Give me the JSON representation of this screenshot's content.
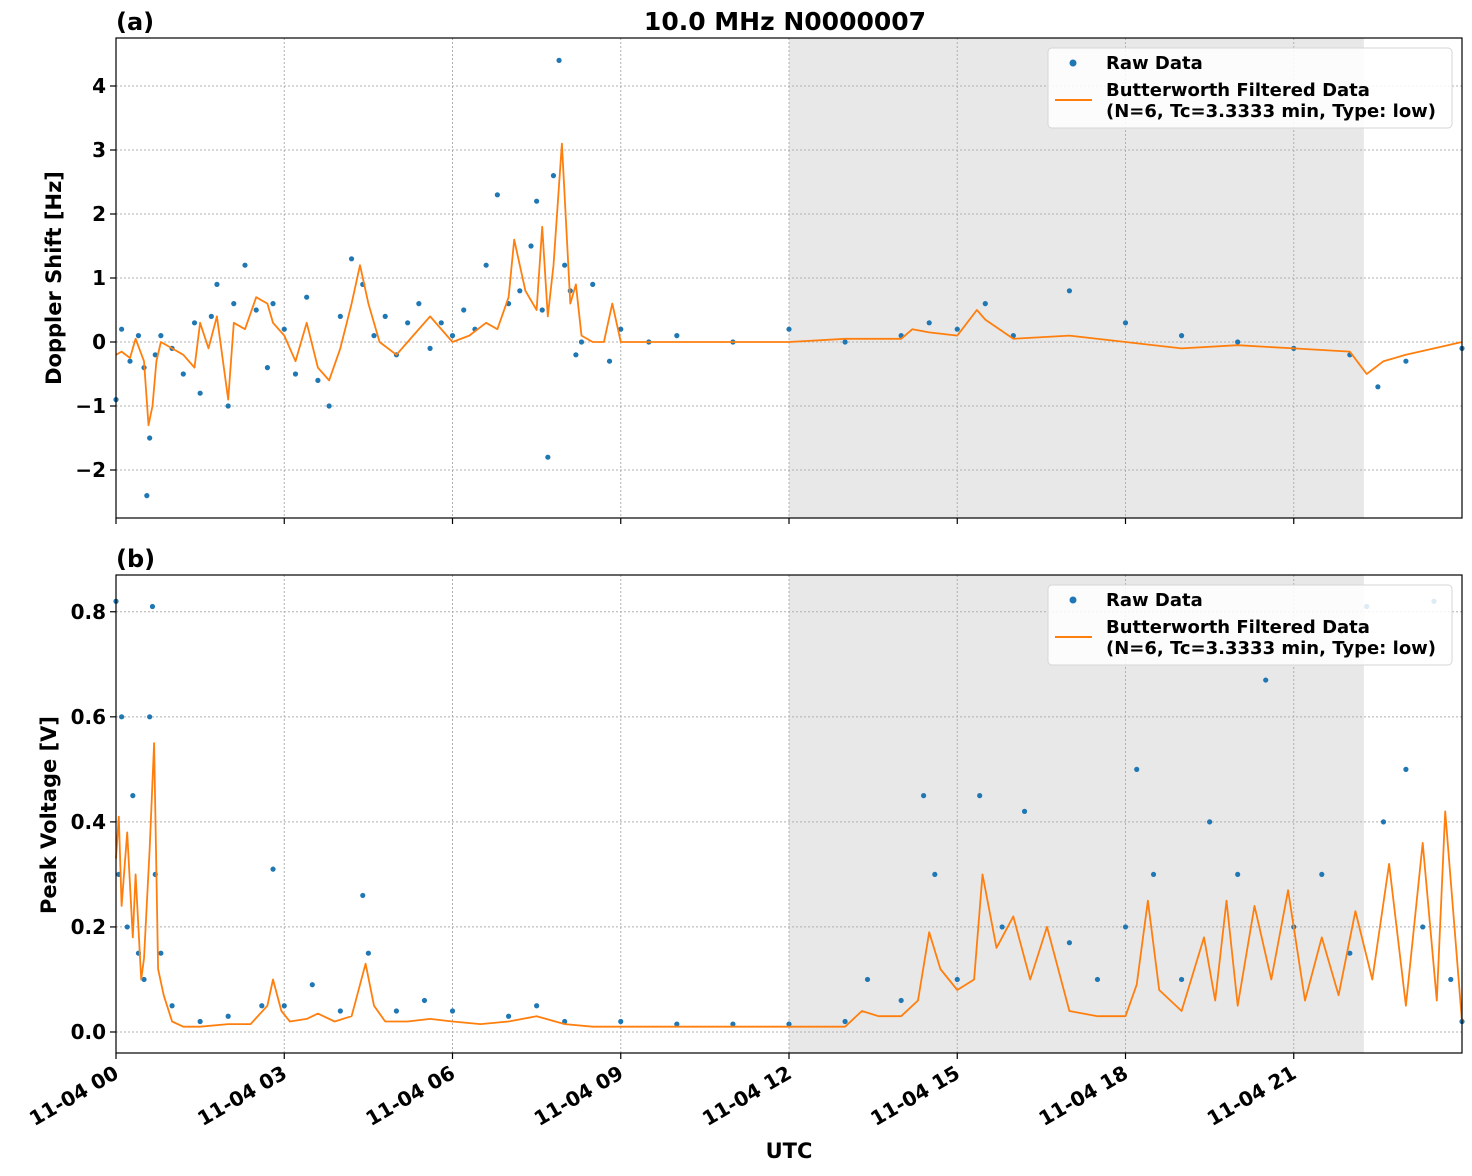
{
  "chart_data": [
    {
      "type": "scatter",
      "panel_label": "(a)",
      "title": "10.0 MHz N0000007",
      "ylabel": "Doppler Shift [Hz]",
      "xlabel": "",
      "xlim": [
        0,
        24
      ],
      "ylim": [
        -2.75,
        4.75
      ],
      "yticks": [
        -2,
        -1,
        0,
        1,
        2,
        3,
        4
      ],
      "ytick_labels": [
        "−2",
        "−1",
        "0",
        "1",
        "2",
        "3",
        "4"
      ],
      "grid": true,
      "legend": "top-right",
      "shaded_region": {
        "x_start": 12,
        "x_end": 22.25,
        "color": "#e8e8e8"
      },
      "series": [
        {
          "name": "Raw Data",
          "kind": "points",
          "color": "#1f77b4",
          "x": [
            0,
            0.1,
            0.25,
            0.4,
            0.5,
            0.55,
            0.6,
            0.7,
            0.8,
            1.0,
            1.2,
            1.4,
            1.5,
            1.7,
            1.8,
            2.0,
            2.1,
            2.3,
            2.5,
            2.7,
            2.8,
            3.0,
            3.2,
            3.4,
            3.6,
            3.8,
            4.0,
            4.2,
            4.4,
            4.6,
            4.8,
            5.0,
            5.2,
            5.4,
            5.6,
            5.8,
            6.0,
            6.2,
            6.4,
            6.6,
            6.8,
            7.0,
            7.2,
            7.4,
            7.5,
            7.6,
            7.7,
            7.8,
            7.9,
            8.0,
            8.1,
            8.2,
            8.3,
            8.5,
            8.8,
            9.0,
            9.5,
            10,
            11,
            12,
            13,
            14,
            14.5,
            15,
            15.5,
            16,
            17,
            18,
            19,
            20,
            21,
            22,
            22.5,
            23,
            24
          ],
          "y": [
            -0.9,
            0.2,
            -0.3,
            0.1,
            -0.4,
            -2.4,
            -1.5,
            -0.2,
            0.1,
            -0.1,
            -0.5,
            0.3,
            -0.8,
            0.4,
            0.9,
            -1.0,
            0.6,
            1.2,
            0.5,
            -0.4,
            0.6,
            0.2,
            -0.5,
            0.7,
            -0.6,
            -1.0,
            0.4,
            1.3,
            0.9,
            0.1,
            0.4,
            -0.2,
            0.3,
            0.6,
            -0.1,
            0.3,
            0.1,
            0.5,
            0.2,
            1.2,
            2.3,
            0.6,
            0.8,
            1.5,
            2.2,
            0.5,
            -1.8,
            2.6,
            4.4,
            1.2,
            0.8,
            -0.2,
            0.0,
            0.9,
            -0.3,
            0.2,
            0.0,
            0.1,
            0.0,
            0.2,
            0.0,
            0.1,
            0.3,
            0.2,
            0.6,
            0.1,
            0.8,
            0.3,
            0.1,
            0.0,
            -0.1,
            -0.2,
            -0.7,
            -0.3,
            -0.1
          ]
        },
        {
          "name": "Butterworth Filtered Data",
          "name_detail": "(N=6, Tc=3.3333 min, Type: low)",
          "kind": "line",
          "color": "#ff7f0e",
          "x": [
            0,
            0.1,
            0.25,
            0.35,
            0.5,
            0.58,
            0.65,
            0.72,
            0.8,
            1.0,
            1.2,
            1.4,
            1.5,
            1.65,
            1.8,
            2.0,
            2.1,
            2.3,
            2.5,
            2.7,
            2.8,
            3.0,
            3.2,
            3.4,
            3.6,
            3.8,
            4.0,
            4.2,
            4.35,
            4.5,
            4.7,
            5.0,
            5.3,
            5.6,
            6.0,
            6.3,
            6.6,
            6.8,
            7.0,
            7.1,
            7.3,
            7.5,
            7.6,
            7.7,
            7.8,
            7.95,
            8.1,
            8.2,
            8.3,
            8.5,
            8.7,
            8.85,
            9.0,
            10,
            11,
            12,
            13,
            14,
            14.2,
            14.5,
            15,
            15.35,
            15.5,
            16,
            17,
            18,
            19,
            20,
            21,
            22,
            22.3,
            22.6,
            23,
            23.5,
            24
          ],
          "y": [
            -0.2,
            -0.15,
            -0.25,
            0.05,
            -0.3,
            -1.3,
            -1.0,
            -0.3,
            0.0,
            -0.1,
            -0.2,
            -0.4,
            0.3,
            -0.1,
            0.4,
            -0.9,
            0.3,
            0.2,
            0.7,
            0.6,
            0.3,
            0.1,
            -0.3,
            0.3,
            -0.4,
            -0.6,
            -0.1,
            0.6,
            1.2,
            0.6,
            0.0,
            -0.2,
            0.1,
            0.4,
            0.0,
            0.1,
            0.3,
            0.2,
            0.7,
            1.6,
            0.8,
            0.5,
            1.8,
            0.4,
            1.2,
            3.1,
            0.6,
            0.9,
            0.1,
            0.0,
            0.0,
            0.6,
            0.0,
            0.0,
            0.0,
            0.0,
            0.05,
            0.05,
            0.2,
            0.15,
            0.1,
            0.5,
            0.35,
            0.05,
            0.1,
            0.0,
            -0.1,
            -0.05,
            -0.1,
            -0.15,
            -0.5,
            -0.3,
            -0.2,
            -0.1,
            0.0
          ]
        }
      ]
    },
    {
      "type": "scatter",
      "panel_label": "(b)",
      "title": "",
      "ylabel": "Peak Voltage [V]",
      "xlabel": "UTC",
      "xlim": [
        0,
        24
      ],
      "ylim": [
        -0.04,
        0.87
      ],
      "yticks": [
        0.0,
        0.2,
        0.4,
        0.6,
        0.8
      ],
      "ytick_labels": [
        "0.0",
        "0.2",
        "0.4",
        "0.6",
        "0.8"
      ],
      "xticks": [
        0,
        3,
        6,
        9,
        12,
        15,
        18,
        21
      ],
      "xtick_labels": [
        "11-04 00",
        "11-04 03",
        "11-04 06",
        "11-04 09",
        "11-04 12",
        "11-04 15",
        "11-04 18",
        "11-04 21"
      ],
      "grid": true,
      "legend": "top-right",
      "shaded_region": {
        "x_start": 12,
        "x_end": 22.25,
        "color": "#e8e8e8"
      },
      "series": [
        {
          "name": "Raw Data",
          "kind": "points",
          "color": "#1f77b4",
          "x": [
            0,
            0.05,
            0.1,
            0.2,
            0.3,
            0.4,
            0.5,
            0.6,
            0.65,
            0.7,
            0.8,
            1.0,
            1.5,
            2.0,
            2.6,
            2.8,
            3.0,
            3.5,
            4.0,
            4.4,
            4.5,
            5.0,
            5.5,
            6.0,
            7.0,
            7.5,
            8.0,
            9.0,
            10,
            11,
            12,
            13,
            13.4,
            14,
            14.4,
            14.6,
            15.0,
            15.4,
            15.8,
            16.2,
            17,
            17.5,
            18,
            18.2,
            18.5,
            19,
            19.5,
            20,
            20.5,
            21,
            21.5,
            22,
            22.3,
            22.6,
            23,
            23.3,
            23.5,
            23.8,
            24
          ],
          "y": [
            0.82,
            0.3,
            0.6,
            0.2,
            0.45,
            0.15,
            0.1,
            0.6,
            0.81,
            0.3,
            0.15,
            0.05,
            0.02,
            0.03,
            0.05,
            0.31,
            0.05,
            0.09,
            0.04,
            0.26,
            0.15,
            0.04,
            0.06,
            0.04,
            0.03,
            0.05,
            0.02,
            0.02,
            0.015,
            0.015,
            0.015,
            0.02,
            0.1,
            0.06,
            0.45,
            0.3,
            0.1,
            0.45,
            0.2,
            0.42,
            0.17,
            0.1,
            0.2,
            0.5,
            0.3,
            0.1,
            0.4,
            0.3,
            0.67,
            0.2,
            0.3,
            0.15,
            0.81,
            0.4,
            0.5,
            0.2,
            0.82,
            0.1,
            0.02
          ]
        },
        {
          "name": "Butterworth Filtered Data",
          "name_detail": "(N=6, Tc=3.3333 min, Type: low)",
          "kind": "line",
          "color": "#ff7f0e",
          "x": [
            0,
            0.05,
            0.1,
            0.2,
            0.3,
            0.35,
            0.45,
            0.5,
            0.6,
            0.68,
            0.75,
            0.85,
            1.0,
            1.2,
            1.5,
            2.0,
            2.4,
            2.7,
            2.8,
            2.95,
            3.1,
            3.4,
            3.6,
            3.9,
            4.2,
            4.45,
            4.6,
            4.8,
            5.2,
            5.6,
            6.0,
            6.5,
            7.0,
            7.5,
            8.0,
            8.5,
            9.0,
            10,
            11,
            12,
            13,
            13.3,
            13.6,
            14,
            14.3,
            14.5,
            14.7,
            15.0,
            15.3,
            15.45,
            15.7,
            16.0,
            16.3,
            16.6,
            17,
            17.5,
            18,
            18.2,
            18.4,
            18.6,
            19,
            19.4,
            19.6,
            19.8,
            20.0,
            20.3,
            20.6,
            20.9,
            21.2,
            21.5,
            21.8,
            22.1,
            22.4,
            22.7,
            23.0,
            23.3,
            23.55,
            23.7,
            24
          ],
          "y": [
            0.33,
            0.41,
            0.24,
            0.38,
            0.18,
            0.3,
            0.1,
            0.14,
            0.35,
            0.55,
            0.12,
            0.07,
            0.02,
            0.01,
            0.01,
            0.015,
            0.015,
            0.05,
            0.1,
            0.04,
            0.02,
            0.025,
            0.035,
            0.02,
            0.03,
            0.13,
            0.05,
            0.02,
            0.02,
            0.025,
            0.02,
            0.015,
            0.02,
            0.03,
            0.015,
            0.01,
            0.01,
            0.01,
            0.01,
            0.01,
            0.01,
            0.04,
            0.03,
            0.03,
            0.06,
            0.19,
            0.12,
            0.08,
            0.1,
            0.3,
            0.16,
            0.22,
            0.1,
            0.2,
            0.04,
            0.03,
            0.03,
            0.09,
            0.25,
            0.08,
            0.04,
            0.18,
            0.06,
            0.25,
            0.05,
            0.24,
            0.1,
            0.27,
            0.06,
            0.18,
            0.07,
            0.23,
            0.1,
            0.32,
            0.05,
            0.36,
            0.06,
            0.42,
            0.02
          ]
        }
      ]
    }
  ]
}
